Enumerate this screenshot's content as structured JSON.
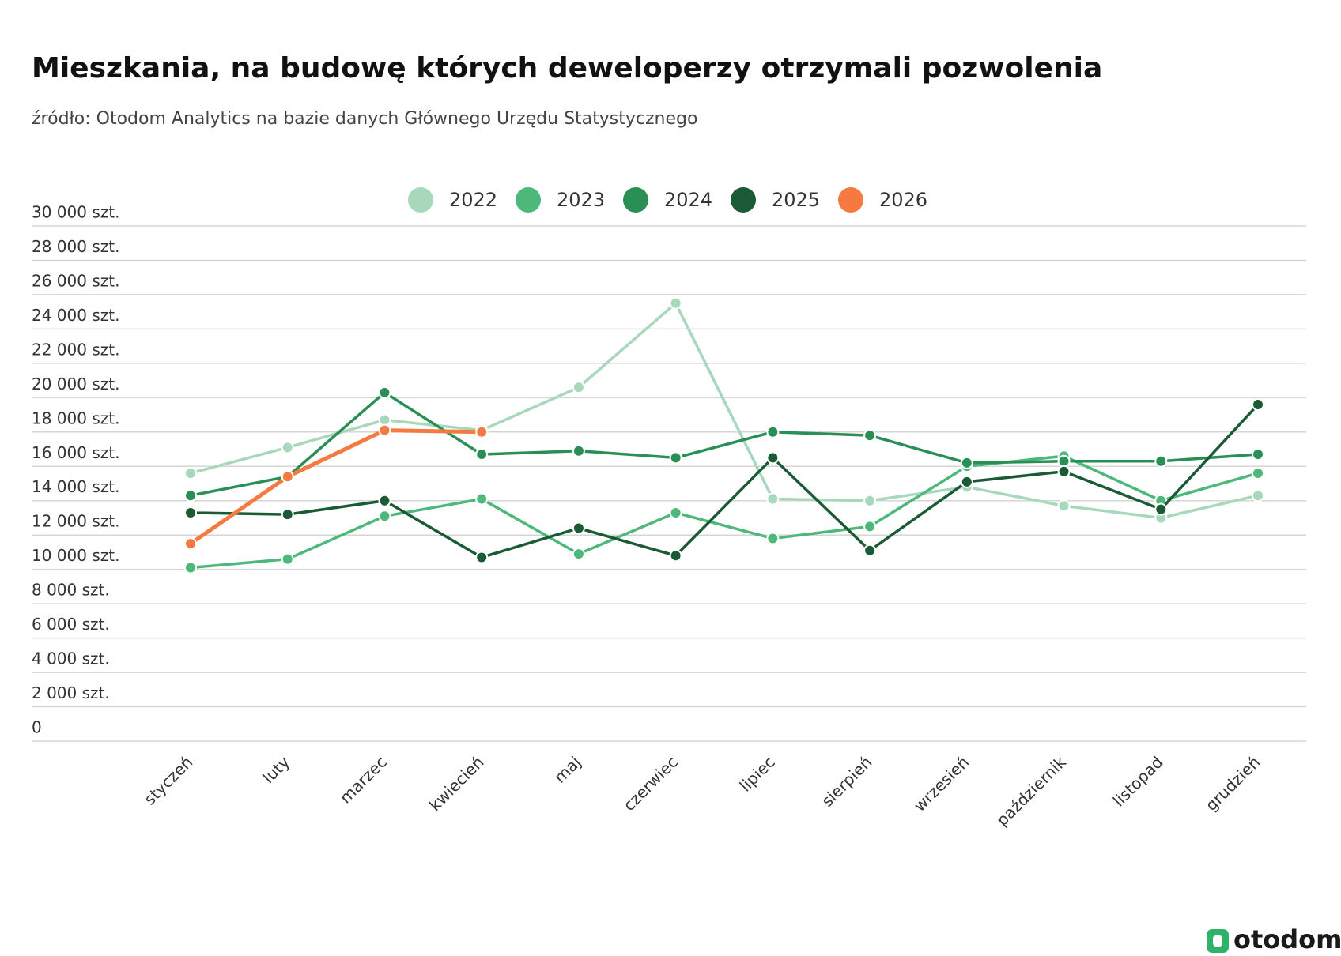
{
  "chart_data": {
    "type": "line",
    "title": "Mieszkania, na budowę których deweloperzy otrzymali pozwolenia",
    "subtitle": "źródło: Otodom Analytics na bazie danych Głównego Urzędu Statystycznego",
    "categories": [
      "styczeń",
      "luty",
      "marzec",
      "kwiecień",
      "maj",
      "czerwiec",
      "lipiec",
      "sierpień",
      "wrzesień",
      "październik",
      "listopad",
      "grudzień"
    ],
    "series": [
      {
        "name": "2022",
        "color": "#a8d8bc",
        "values": [
          15600,
          17100,
          18700,
          18100,
          20600,
          25500,
          14100,
          14000,
          14800,
          13700,
          13000,
          14300
        ]
      },
      {
        "name": "2023",
        "color": "#4cb87a",
        "values": [
          10100,
          10600,
          13100,
          14100,
          10900,
          13300,
          11800,
          12500,
          16000,
          16600,
          14000,
          15600
        ]
      },
      {
        "name": "2024",
        "color": "#2a8f55",
        "values": [
          14300,
          15400,
          20300,
          16700,
          16900,
          16500,
          18000,
          17800,
          16200,
          16300,
          16300,
          16700
        ]
      },
      {
        "name": "2025",
        "color": "#1a5a35",
        "values": [
          13300,
          13200,
          14000,
          10700,
          12400,
          10800,
          16500,
          11100,
          15100,
          15700,
          13500,
          19600
        ]
      },
      {
        "name": "2026",
        "color": "#f47a42",
        "values": [
          11500,
          15400,
          18100,
          18000,
          null,
          null,
          null,
          null,
          null,
          null,
          null,
          null
        ]
      }
    ],
    "ylim": [
      0,
      30000
    ],
    "yticks": [
      0,
      {
        "value": 2000,
        "label": "2 000 szt."
      },
      {
        "value": 4000,
        "label": "4 000 szt."
      },
      {
        "value": 6000,
        "label": "6 000 szt."
      },
      {
        "value": 8000,
        "label": "8 000 szt."
      },
      {
        "value": 10000,
        "label": "10 000 szt."
      },
      {
        "value": 12000,
        "label": "12 000 szt."
      },
      {
        "value": 14000,
        "label": "14 000 szt."
      },
      {
        "value": 16000,
        "label": "16 000 szt."
      },
      {
        "value": 18000,
        "label": "18 000 szt."
      },
      {
        "value": 20000,
        "label": "20 000 szt."
      },
      {
        "value": 22000,
        "label": "22 000 szt."
      },
      {
        "value": 24000,
        "label": "24 000 szt."
      },
      {
        "value": 26000,
        "label": "26 000 szt."
      },
      {
        "value": 28000,
        "label": "28 000 szt."
      },
      {
        "value": 30000,
        "label": "30 000 szt."
      }
    ],
    "grid": true,
    "legend": "top",
    "logo": "otodom"
  }
}
